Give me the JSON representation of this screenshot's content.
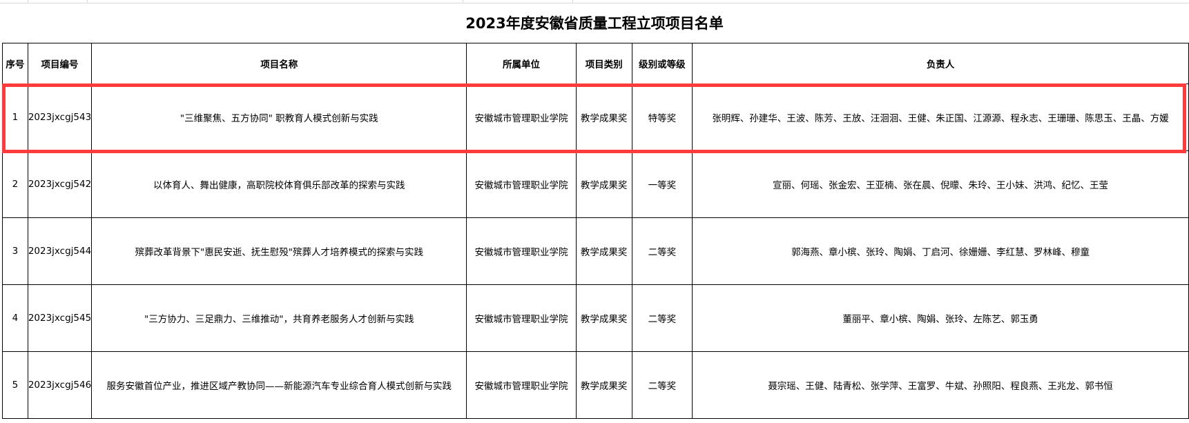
{
  "title": "2023年度安徽省质量工程立项项目名单",
  "columns": [
    "序号",
    "项目编号",
    "项目名称",
    "所属单位",
    "项目类别",
    "级别或等级",
    "负责人"
  ],
  "rows": [
    {
      "no": "1",
      "code": "2023jxcgj543",
      "name": "\"三维聚焦、五方协同\" 职教育人模式创新与实践",
      "unit": "安徽城市管理职业学院",
      "category": "教学成果奖",
      "level": "特等奖",
      "leaders": "张明辉、孙建华、王波、陈芳、王放、汪洄洄、王健、朱正国、江源源、程永志、王珊珊、陈思玉、王晶、方媛"
    },
    {
      "no": "2",
      "code": "2023jxcgj542",
      "name": "以体育人、舞出健康，高职院校体育俱乐部改革的探索与实践",
      "unit": "安徽城市管理职业学院",
      "category": "教学成果奖",
      "level": "一等奖",
      "leaders": "宣丽、何瑶、张金宏、王亚楠、张在晨、倪曚、朱玲、王小妹、洪鸿、纪忆、王莹"
    },
    {
      "no": "3",
      "code": "2023jxcgj544",
      "name": "殡葬改革背景下\"惠民安逝、抚生慰殁\"殡葬人才培养模式的探索与实践",
      "unit": "安徽城市管理职业学院",
      "category": "教学成果奖",
      "level": "二等奖",
      "leaders": "郭海燕、章小槟、张玲、陶娟、丁启河、徐姗姗、李红慧、罗林峰、穆童"
    },
    {
      "no": "4",
      "code": "2023jxcgj545",
      "name": "\"三方协力、三足鼎力、三维推动\"，共育养老服务人才创新与实践",
      "unit": "安徽城市管理职业学院",
      "category": "教学成果奖",
      "level": "二等奖",
      "leaders": "董丽平、章小槟、陶娟、张玲、左陈艺、郭玉勇"
    },
    {
      "no": "5",
      "code": "2023jxcgj546",
      "name": "服务安徽首位产业，推进区域产教协同——新能源汽车专业综合育人模式创新与实践",
      "unit": "安徽城市管理职业学院",
      "category": "教学成果奖",
      "level": "二等奖",
      "leaders": "聂宗瑶、王健、陆青松、张学萍、王富罗、牛斌、孙照阳、程良燕、王兆龙、郭书恒"
    }
  ],
  "highlight_color": "#ff3b3b"
}
